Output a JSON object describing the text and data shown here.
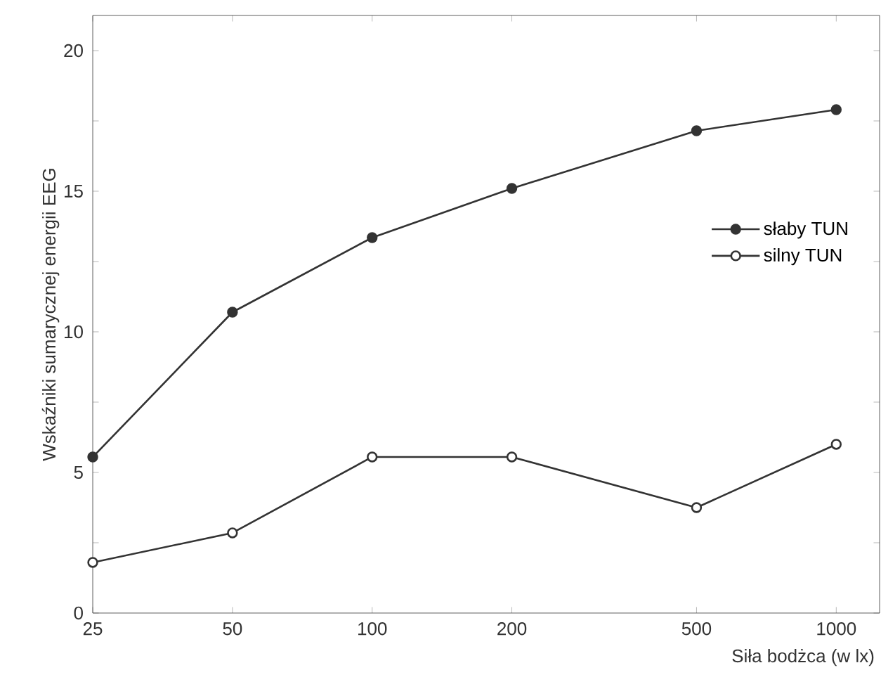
{
  "chart_data": {
    "type": "line",
    "xlabel": "Siła bodżca (w lx)",
    "ylabel": "Wskaźniki sumarycznej energii EEG",
    "log": "x",
    "x": [
      25,
      50,
      100,
      200,
      500,
      1000
    ],
    "series": [
      {
        "name": "słaby TUN",
        "color": "#333333",
        "values": [
          5.55,
          10.7,
          13.35,
          15.1,
          17.15,
          17.9
        ]
      },
      {
        "name": "silny TUN",
        "color": "#333333",
        "values": [
          1.8,
          2.85,
          5.55,
          5.55,
          3.75,
          6.0
        ]
      }
    ],
    "xlim": [
      25,
      1240
    ],
    "ylim": [
      0,
      21.25
    ],
    "xticks": [
      25,
      50,
      100,
      200,
      500,
      1000
    ],
    "yticks": [
      0,
      {
        "value": 2.5,
        "label": null
      },
      5,
      {
        "value": 7.5,
        "label": null
      },
      10,
      {
        "value": 12.5,
        "label": null
      },
      15,
      {
        "value": 17.5,
        "label": null
      },
      20
    ],
    "marker": "circle",
    "line_style": "solid",
    "legend": "center right",
    "grid": false
  }
}
